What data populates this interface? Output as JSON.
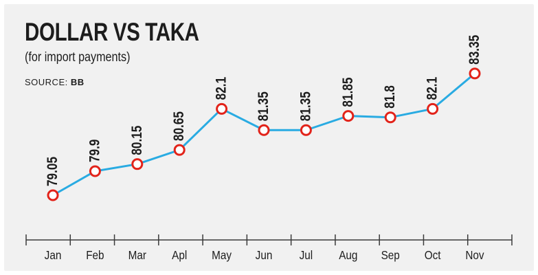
{
  "chart_data": {
    "type": "line",
    "title": "DOLLAR VS TAKA",
    "subtitle": "(for import payments)",
    "source_label": "SOURCE:",
    "source_value": "BB",
    "categories": [
      "Jan",
      "Feb",
      "Mar",
      "Apl",
      "May",
      "Jun",
      "Jul",
      "Aug",
      "Sep",
      "Oct",
      "Nov"
    ],
    "series": [
      {
        "values": [
          79.05,
          79.9,
          80.15,
          80.65,
          82.1,
          81.35,
          81.35,
          81.85,
          81.8,
          82.1,
          83.35
        ],
        "labels": [
          "79.05",
          "79.9",
          "80.15",
          "80.65",
          "82.1",
          "81.35",
          "81.35",
          "81.85",
          "81.8",
          "82.1",
          "83.35"
        ]
      }
    ],
    "grid": false,
    "colors": {
      "line": "#29abe2",
      "marker": "#e2231a",
      "marker_fill": "#ffffff",
      "text": "#1d1d1d"
    }
  }
}
